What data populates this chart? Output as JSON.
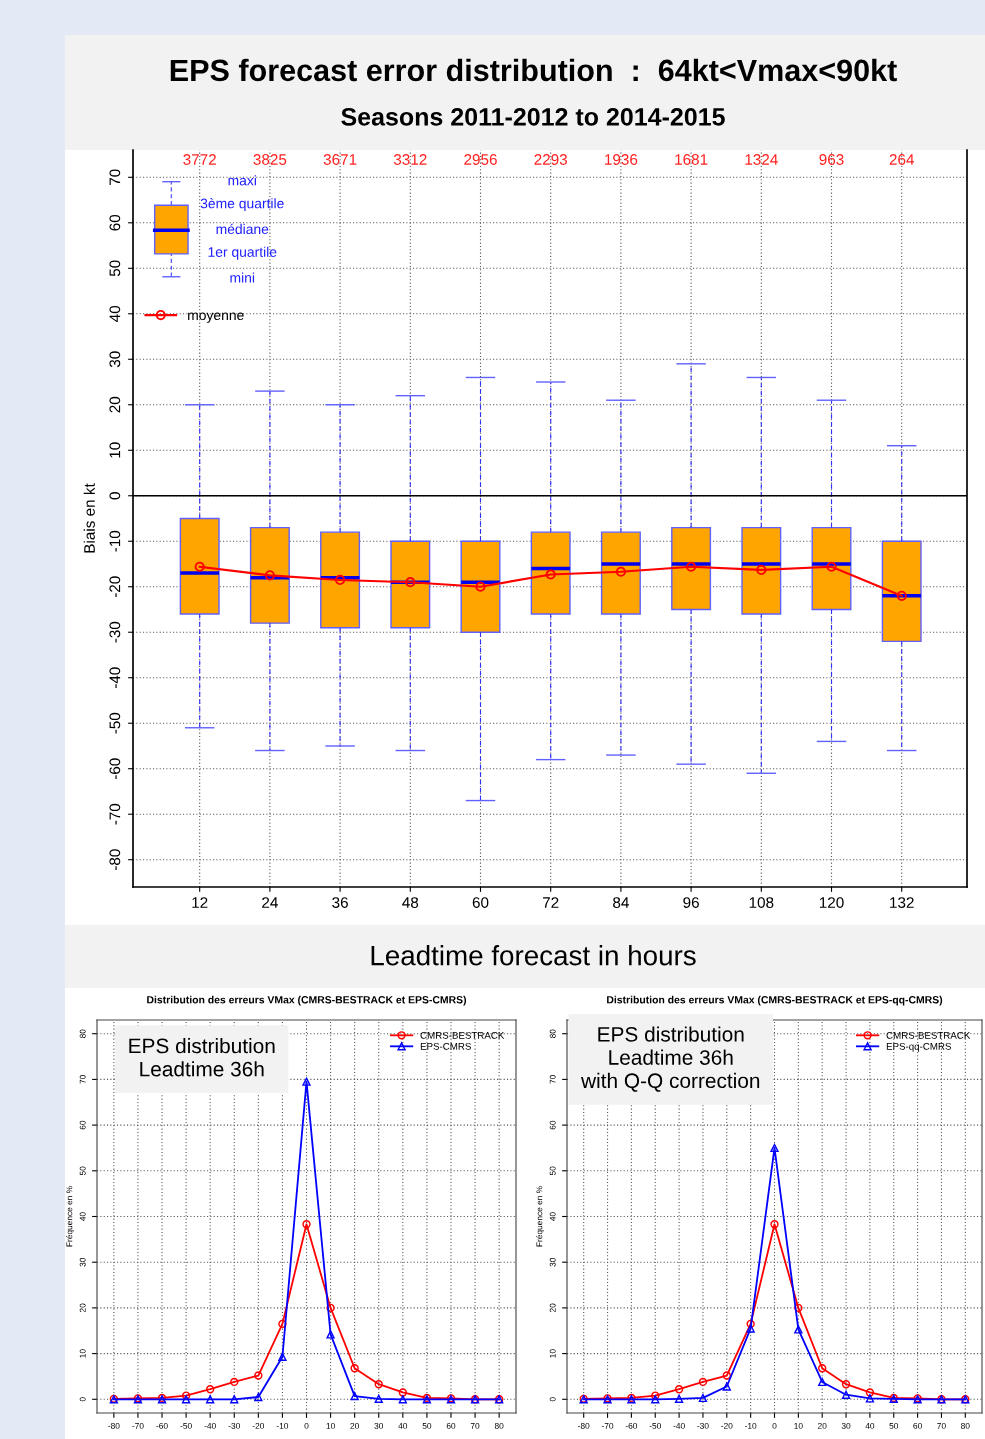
{
  "chart_data": [
    {
      "type": "box",
      "title": "EPS forecast error distribution  :  64kt<Vmax<90kt",
      "subtitle": "Seasons 2011-2012 to 2014-2015",
      "xlabel": "Leadtime forecast in hours",
      "ylabel": "Biais en kt",
      "categories": [
        "12",
        "24",
        "36",
        "48",
        "60",
        "72",
        "84",
        "96",
        "108",
        "120",
        "132"
      ],
      "series": [
        {
          "type": "box",
          "color": "#ffa500",
          "boxes": [
            {
              "low": -51,
              "q1": -26,
              "median": -17,
              "q3": -5,
              "high": 20
            },
            {
              "low": -56,
              "q1": -28,
              "median": -18,
              "q3": -7,
              "high": 23
            },
            {
              "low": -55,
              "q1": -29,
              "median": -18,
              "q3": -8,
              "high": 20
            },
            {
              "low": -56,
              "q1": -29,
              "median": -19,
              "q3": -10,
              "high": 22
            },
            {
              "low": -67,
              "q1": -30,
              "median": -19,
              "q3": -10,
              "high": 26
            },
            {
              "low": -58,
              "q1": -26,
              "median": -16,
              "q3": -8,
              "high": 25
            },
            {
              "low": -57,
              "q1": -26,
              "median": -15,
              "q3": -8,
              "high": 21
            },
            {
              "low": -59,
              "q1": -25,
              "median": -15,
              "q3": -7,
              "high": 29
            },
            {
              "low": -61,
              "q1": -26,
              "median": -15,
              "q3": -7,
              "high": 26
            },
            {
              "low": -54,
              "q1": -25,
              "median": -15,
              "q3": -7,
              "high": 21
            },
            {
              "low": -56,
              "q1": -32,
              "median": -22,
              "q3": -10,
              "high": 11
            }
          ]
        },
        {
          "type": "line",
          "name": "moyenne",
          "color": "#ff0000",
          "marker": "circle",
          "values": [
            -15.6,
            -17.5,
            -18.5,
            -19,
            -20,
            -17.3,
            -16.7,
            -15.6,
            -16.3,
            -15.6,
            -22
          ]
        }
      ],
      "ylim": [
        -86,
        76
      ],
      "yticks": [
        -80,
        -70,
        -60,
        -50,
        -40,
        -30,
        -20,
        -10,
        0,
        10,
        20,
        30,
        40,
        50,
        60,
        70
      ],
      "ref_lines": [
        {
          "axis": "y",
          "value": 0,
          "color": "#000000"
        }
      ],
      "grid": true,
      "legend": "top left",
      "annotations": [
        "maxi",
        "3ème quartile",
        "médiane",
        "1er quartile",
        "mini",
        "3772",
        "3825",
        "3671",
        "3312",
        "2956",
        "2293",
        "1936",
        "1681",
        "1324",
        "963",
        "264"
      ]
    },
    {
      "type": "line",
      "title": "Distribution des erreurs VMax (CMRS-BESTRACK et EPS-CMRS)",
      "ylabel": "Fréquence en %",
      "x": [
        -80,
        -70,
        -60,
        -50,
        -40,
        -30,
        -20,
        -10,
        0,
        10,
        20,
        30,
        40,
        50,
        60,
        70,
        80
      ],
      "series": [
        {
          "name": "CMRS-BESTRACK",
          "color": "#ff0000",
          "marker": "circle",
          "values": [
            0.1,
            0.2,
            0.3,
            0.8,
            2.2,
            3.8,
            5.2,
            16.5,
            38.3,
            20,
            6.8,
            3.3,
            1.5,
            0.3,
            0.2,
            0,
            0
          ]
        },
        {
          "name": "EPS-CMRS",
          "color": "#0000ff",
          "marker": "triangle",
          "values": [
            0,
            0,
            0,
            0,
            0,
            0,
            0.5,
            9.3,
            69.5,
            14.2,
            0.7,
            0.1,
            0,
            0,
            0,
            0,
            0
          ]
        }
      ],
      "xlim": [
        -87,
        87
      ],
      "xticks": [
        -80,
        -70,
        -60,
        -50,
        -40,
        -30,
        -20,
        -10,
        0,
        10,
        20,
        30,
        40,
        50,
        60,
        70,
        80
      ],
      "ylim": [
        -3,
        83
      ],
      "yticks": [
        0,
        10,
        20,
        30,
        40,
        50,
        60,
        70,
        80
      ],
      "grid": true,
      "legend": "top right",
      "annotations": [
        "EPS distribution\nLeadtime 36h"
      ]
    },
    {
      "type": "line",
      "title": "Distribution des erreurs VMax (CMRS-BESTRACK et EPS-qq-CMRS)",
      "ylabel": "Fréquence en %",
      "x": [
        -80,
        -70,
        -60,
        -50,
        -40,
        -30,
        -20,
        -10,
        0,
        10,
        20,
        30,
        40,
        50,
        60,
        70,
        80
      ],
      "series": [
        {
          "name": "CMRS-BESTRACK",
          "color": "#ff0000",
          "marker": "circle",
          "values": [
            0.1,
            0.2,
            0.3,
            0.8,
            2.2,
            3.8,
            5.2,
            16.5,
            38.3,
            20,
            6.8,
            3.3,
            1.5,
            0.3,
            0.2,
            0,
            0
          ]
        },
        {
          "name": "EPS-qq-CMRS",
          "color": "#0000ff",
          "marker": "triangle",
          "values": [
            0,
            0,
            0,
            0,
            0.1,
            0.3,
            2.8,
            15.5,
            55,
            15.3,
            3.8,
            1.0,
            0.2,
            0.1,
            0,
            0,
            0
          ]
        }
      ],
      "xlim": [
        -87,
        87
      ],
      "xticks": [
        -80,
        -70,
        -60,
        -50,
        -40,
        -30,
        -20,
        -10,
        0,
        10,
        20,
        30,
        40,
        50,
        60,
        70,
        80
      ],
      "ylim": [
        -3,
        83
      ],
      "yticks": [
        0,
        10,
        20,
        30,
        40,
        50,
        60,
        70,
        80
      ],
      "grid": true,
      "legend": "top right",
      "annotations": [
        "EPS distribution\nLeadtime 36h\nwith Q-Q correction"
      ]
    }
  ]
}
